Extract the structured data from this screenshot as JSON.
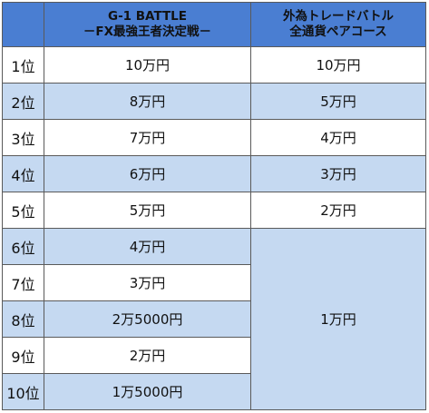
{
  "header": {
    "g1_line1": "G-1 BATTLE",
    "g1_line2": "－FX最強王者決定戦－",
    "fx_line1": "外為トレードバトル",
    "fx_line2": "全通貨ペアコース"
  },
  "rows": [
    {
      "rank": "1位",
      "g1": "10万円",
      "fx": "10万円"
    },
    {
      "rank": "2位",
      "g1": "8万円",
      "fx": "5万円"
    },
    {
      "rank": "3位",
      "g1": "7万円",
      "fx": "4万円"
    },
    {
      "rank": "4位",
      "g1": "6万円",
      "fx": "3万円"
    },
    {
      "rank": "5位",
      "g1": "5万円",
      "fx": "2万円"
    },
    {
      "rank": "6位",
      "g1": "4万円"
    },
    {
      "rank": "7位",
      "g1": "3万円"
    },
    {
      "rank": "8位",
      "g1": "2万5000円"
    },
    {
      "rank": "9位",
      "g1": "2万円"
    },
    {
      "rank": "10位",
      "g1": "1万5000円"
    }
  ],
  "fx_rest": "1万円",
  "colors": {
    "header_bg": "#4a7ed2",
    "stripe": "#c5d9f1",
    "border": "#5a5a5a"
  }
}
